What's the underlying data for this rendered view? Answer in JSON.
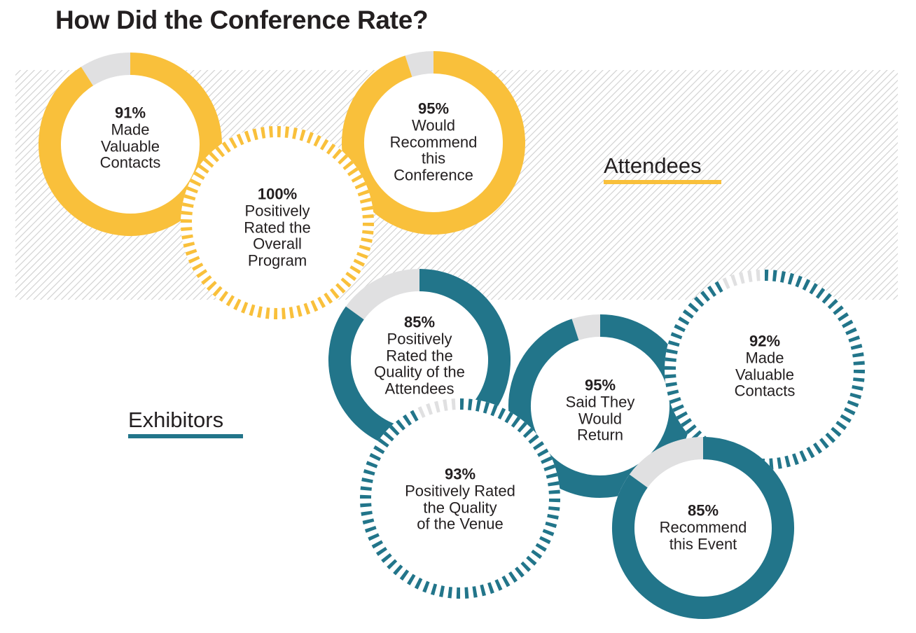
{
  "title": "How Did the Conference Rate?",
  "colors": {
    "attendees": "#f9c03b",
    "exhibitors": "#22758a",
    "remainder": "#e0e0e1",
    "hatch": "#cfcfcf",
    "text": "#231f20"
  },
  "sections": {
    "attendees": {
      "label": "Attendees"
    },
    "exhibitors": {
      "label": "Exhibitors"
    }
  },
  "chart_data": {
    "type": "donut",
    "title": "How Did the Conference Rate?",
    "series": [
      {
        "name": "Attendees",
        "items": [
          {
            "value": 91,
            "pct_label": "91%",
            "label": "Made\nValuable\nContacts",
            "style": "solid"
          },
          {
            "value": 100,
            "pct_label": "100%",
            "label": "Positively\nRated the\nOverall\nProgram",
            "style": "dashed"
          },
          {
            "value": 95,
            "pct_label": "95%",
            "label": "Would\nRecommend\nthis\nConference",
            "style": "solid"
          }
        ]
      },
      {
        "name": "Exhibitors",
        "items": [
          {
            "value": 85,
            "pct_label": "85%",
            "label": "Positively\nRated the\nQuality of the\nAttendees",
            "style": "solid"
          },
          {
            "value": 93,
            "pct_label": "93%",
            "label": "Positively Rated\nthe Quality\nof the Venue",
            "style": "dashed"
          },
          {
            "value": 95,
            "pct_label": "95%",
            "label": "Said They\nWould\nReturn",
            "style": "solid"
          },
          {
            "value": 92,
            "pct_label": "92%",
            "label": "Made\nValuable\nContacts",
            "style": "dashed"
          },
          {
            "value": 85,
            "pct_label": "85%",
            "label": "Recommend\nthis Event",
            "style": "solid"
          }
        ]
      }
    ]
  }
}
